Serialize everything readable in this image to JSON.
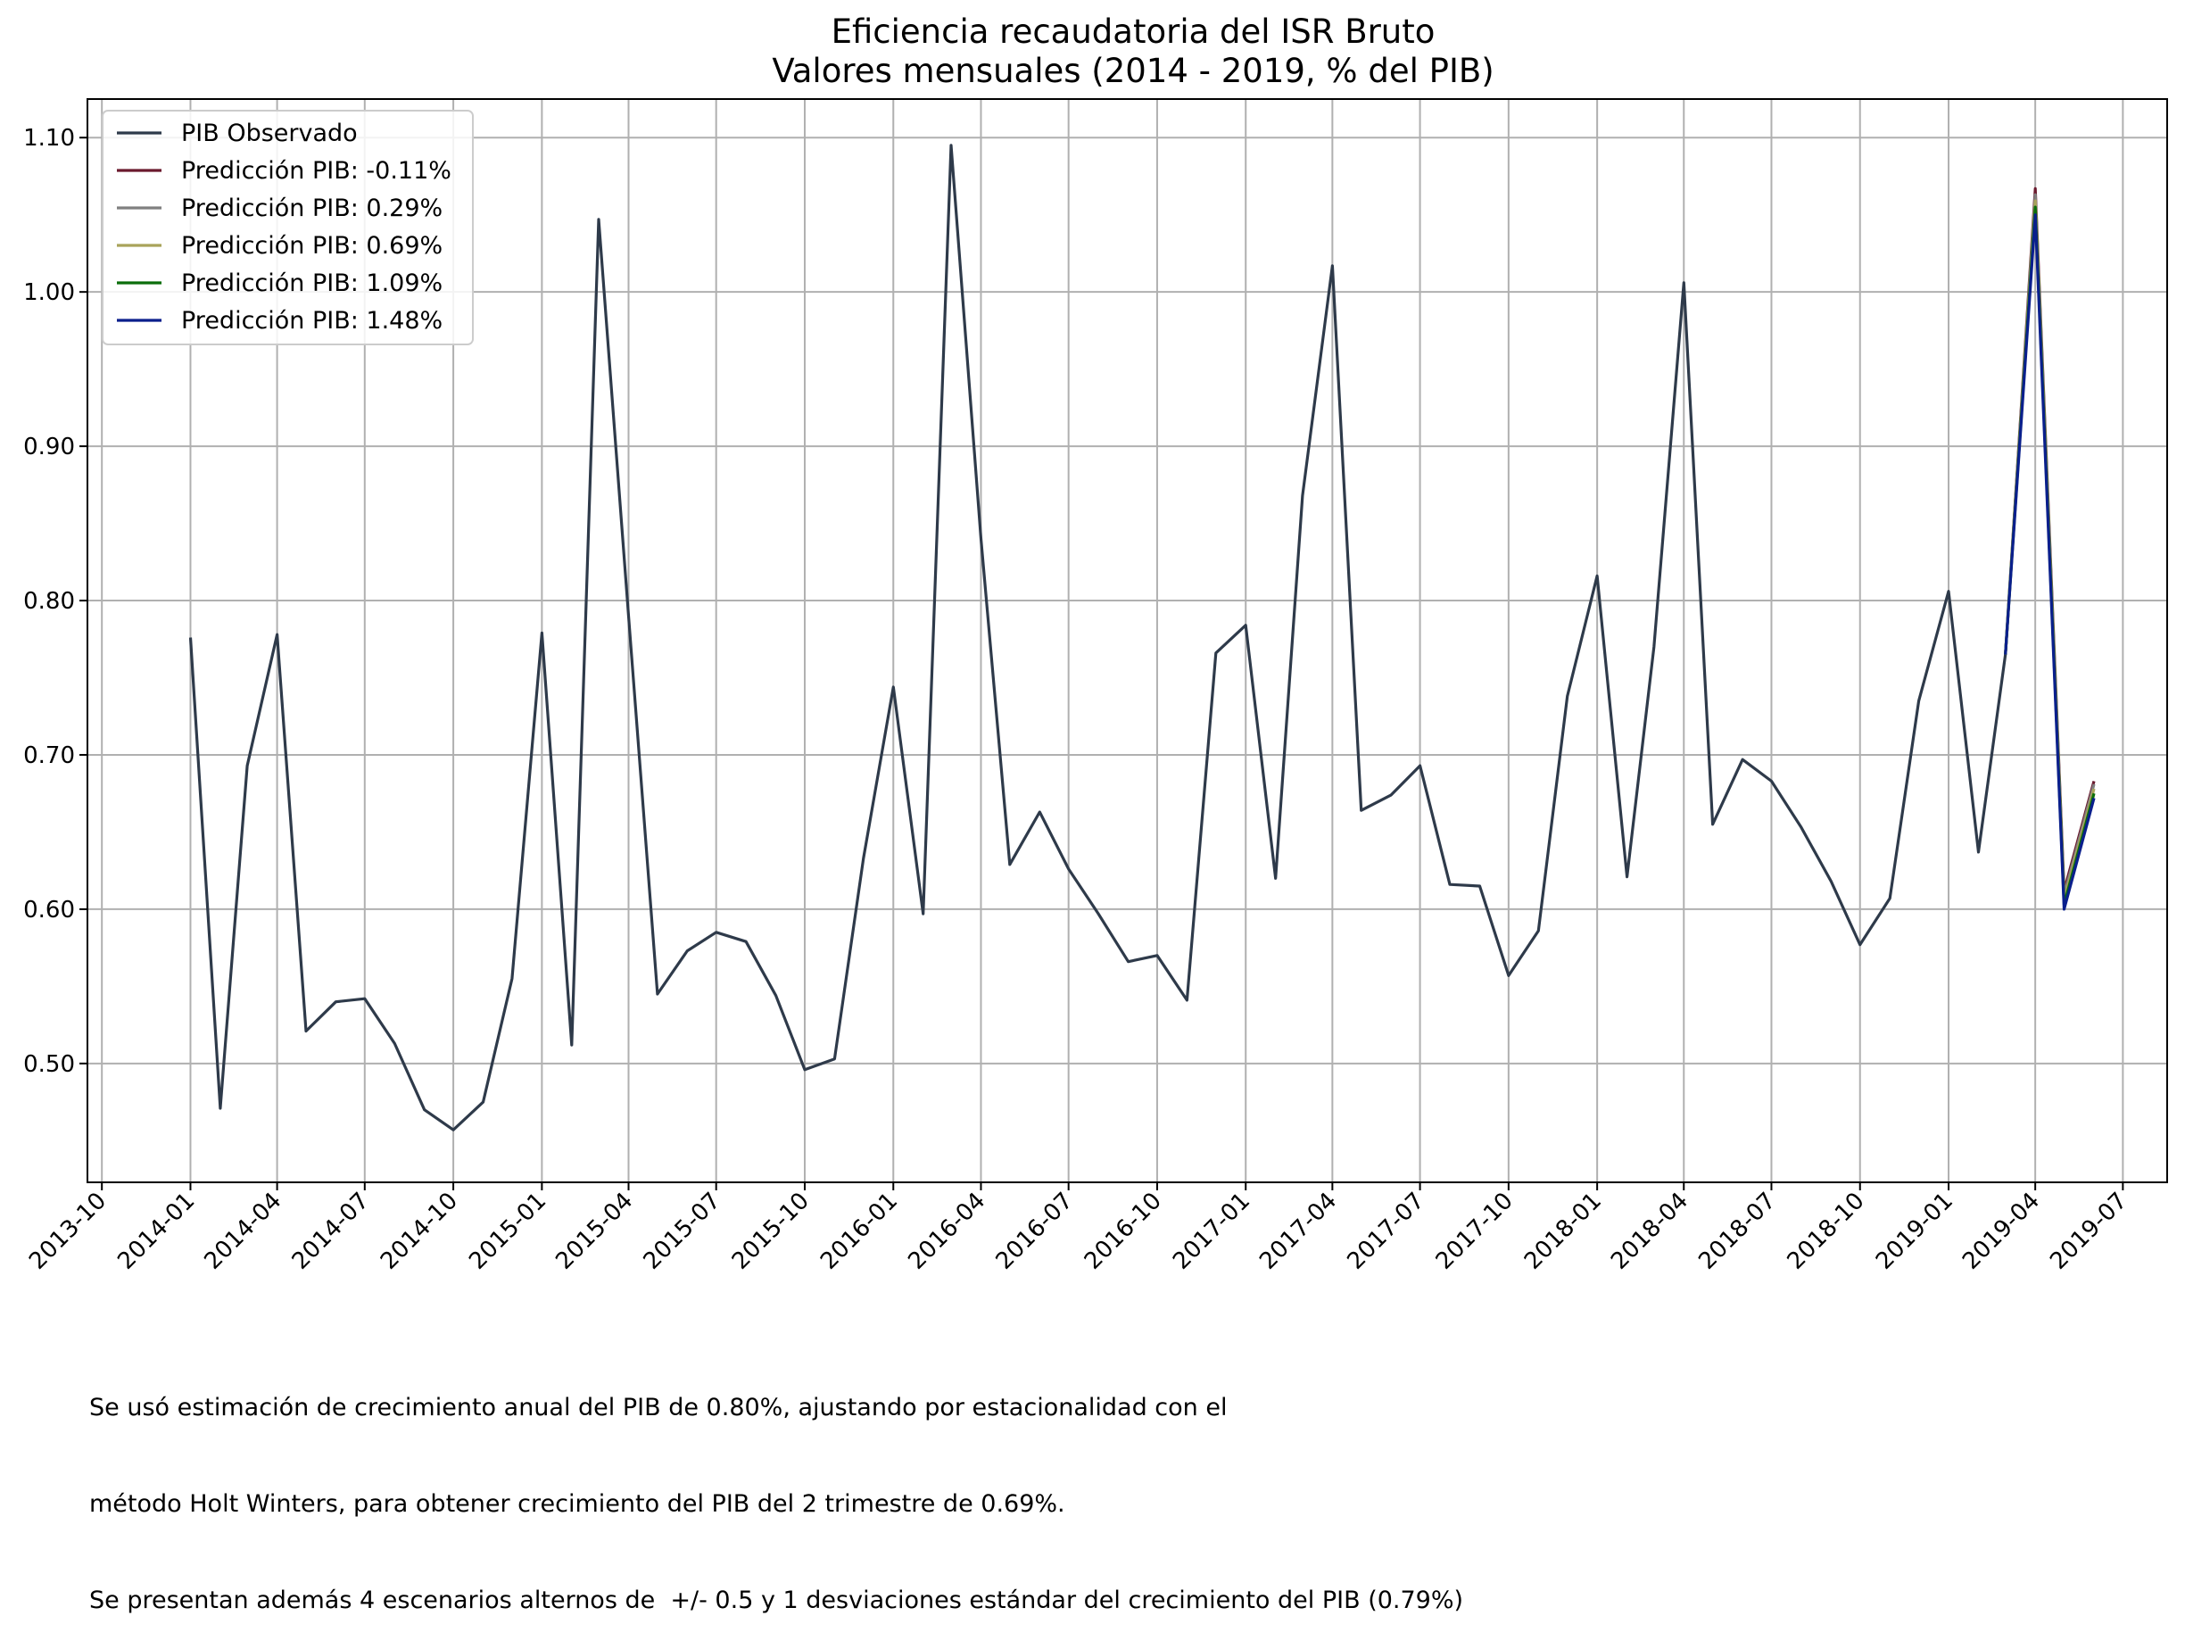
{
  "chart_data": {
    "type": "line",
    "title": "Eficiencia recaudatoria del ISR Bruto",
    "subtitle": "Valores mensuales (2014 - 2019, % del PIB)",
    "xlabel": "",
    "ylabel": "",
    "xlim": [
      "2013-09-16",
      "2019-08-16"
    ],
    "ylim": [
      0.423,
      1.125
    ],
    "grid": true,
    "legend_position": "top-left",
    "x_ticks": [
      "2013-10",
      "2014-01",
      "2014-04",
      "2014-07",
      "2014-10",
      "2015-01",
      "2015-04",
      "2015-07",
      "2015-10",
      "2016-01",
      "2016-04",
      "2016-07",
      "2016-10",
      "2017-01",
      "2017-04",
      "2017-07",
      "2017-10",
      "2018-01",
      "2018-04",
      "2018-07",
      "2018-10",
      "2019-01",
      "2019-04",
      "2019-07"
    ],
    "y_ticks": [
      "0.50",
      "0.60",
      "0.70",
      "0.80",
      "0.90",
      "1.00",
      "1.10"
    ],
    "observed": {
      "name": "PIB Observado",
      "color": "#2e3a4a",
      "x": [
        "2014-01",
        "2014-02",
        "2014-03",
        "2014-04",
        "2014-05",
        "2014-06",
        "2014-07",
        "2014-08",
        "2014-09",
        "2014-10",
        "2014-11",
        "2014-12",
        "2015-01",
        "2015-02",
        "2015-03",
        "2015-04",
        "2015-05",
        "2015-06",
        "2015-07",
        "2015-08",
        "2015-09",
        "2015-10",
        "2015-11",
        "2015-12",
        "2016-01",
        "2016-02",
        "2016-03",
        "2016-04",
        "2016-05",
        "2016-06",
        "2016-07",
        "2016-08",
        "2016-09",
        "2016-10",
        "2016-11",
        "2016-12",
        "2017-01",
        "2017-02",
        "2017-03",
        "2017-04",
        "2017-05",
        "2017-06",
        "2017-07",
        "2017-08",
        "2017-09",
        "2017-10",
        "2017-11",
        "2017-12",
        "2018-01",
        "2018-02",
        "2018-03",
        "2018-04",
        "2018-05",
        "2018-06",
        "2018-07",
        "2018-08",
        "2018-09",
        "2018-10",
        "2018-11",
        "2018-12",
        "2019-01",
        "2019-02",
        "2019-03"
      ],
      "values": [
        0.776,
        0.471,
        0.693,
        0.778,
        0.521,
        0.54,
        0.542,
        0.513,
        0.47,
        0.457,
        0.475,
        0.555,
        0.779,
        0.512,
        1.047,
        0.79,
        0.545,
        0.573,
        0.585,
        0.579,
        0.544,
        0.496,
        0.503,
        0.633,
        0.744,
        0.597,
        1.095,
        0.84,
        0.629,
        0.663,
        0.626,
        0.597,
        0.566,
        0.57,
        0.541,
        0.766,
        0.784,
        0.62,
        0.868,
        1.017,
        0.664,
        0.674,
        0.693,
        0.616,
        0.615,
        0.557,
        0.586,
        0.738,
        0.816,
        0.621,
        0.77,
        1.006,
        0.655,
        0.697,
        0.683,
        0.653,
        0.618,
        0.577,
        0.607,
        0.735,
        0.806,
        0.637,
        0.765
      ]
    },
    "series": [
      {
        "name": "Predicción PIB: -0.11%",
        "color": "#6b1a2e",
        "x": [
          "2019-03",
          "2019-04",
          "2019-05",
          "2019-06"
        ],
        "values": [
          0.765,
          1.067,
          0.612,
          0.683
        ]
      },
      {
        "name": "Predicción PIB: 0.29%",
        "color": "#808080",
        "x": [
          "2019-03",
          "2019-04",
          "2019-05",
          "2019-06"
        ],
        "values": [
          0.765,
          1.063,
          0.609,
          0.681
        ]
      },
      {
        "name": "Predicción PIB: 0.69%",
        "color": "#a9a35a",
        "x": [
          "2019-03",
          "2019-04",
          "2019-05",
          "2019-06"
        ],
        "values": [
          0.765,
          1.059,
          0.606,
          0.678
        ]
      },
      {
        "name": "Predicción PIB: 1.09%",
        "color": "#0a6e0a",
        "x": [
          "2019-03",
          "2019-04",
          "2019-05",
          "2019-06"
        ],
        "values": [
          0.765,
          1.055,
          0.603,
          0.675
        ]
      },
      {
        "name": "Predicción PIB: 1.48%",
        "color": "#0a1f8c",
        "x": [
          "2019-03",
          "2019-04",
          "2019-05",
          "2019-06"
        ],
        "values": [
          0.765,
          1.05,
          0.6,
          0.672
        ]
      }
    ],
    "footnote": [
      "Se usó estimación de crecimiento anual del PIB de 0.80%, ajustando por estacionalidad con el",
      "método Holt Winters, para obtener crecimiento del PIB del 2 trimestre de 0.69%.",
      "Se presentan además 4 escenarios alternos de  +/- 0.5 y 1 desviaciones estándar del crecimiento del PIB (0.79%)"
    ]
  }
}
